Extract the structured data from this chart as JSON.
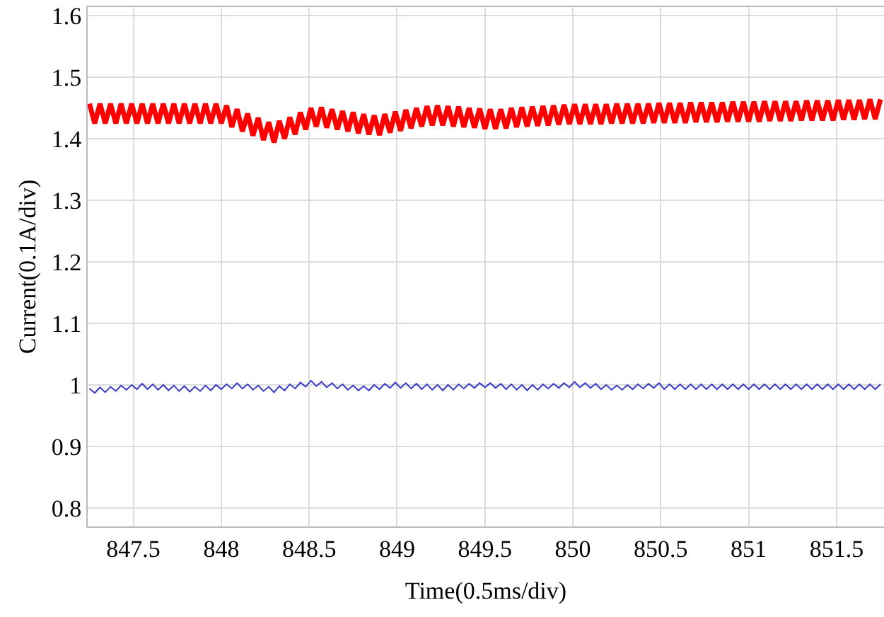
{
  "chart_data": {
    "type": "line",
    "xlabel": "Time(0.5ms/div)",
    "ylabel": "Current(0.1A/div)",
    "x": [
      847.25,
      847.28,
      847.31,
      847.34,
      847.37,
      847.4,
      847.43,
      847.46,
      847.49,
      847.52,
      847.55,
      847.58,
      847.61,
      847.64,
      847.67,
      847.7,
      847.73,
      847.76,
      847.79,
      847.82,
      847.85,
      847.88,
      847.91,
      847.94,
      847.97,
      848,
      848.03,
      848.06,
      848.09,
      848.12,
      848.15,
      848.18,
      848.21,
      848.24,
      848.27,
      848.3,
      848.33,
      848.36,
      848.39,
      848.42,
      848.45,
      848.48,
      848.51,
      848.54,
      848.57,
      848.6,
      848.63,
      848.66,
      848.69,
      848.72,
      848.75,
      848.78,
      848.81,
      848.84,
      848.87,
      848.9,
      848.93,
      848.96,
      848.99,
      849.02,
      849.05,
      849.08,
      849.11,
      849.14,
      849.17,
      849.2,
      849.23,
      849.26,
      849.29,
      849.32,
      849.35,
      849.38,
      849.41,
      849.44,
      849.47,
      849.5,
      849.53,
      849.56,
      849.59,
      849.62,
      849.65,
      849.68,
      849.71,
      849.74,
      849.77,
      849.8,
      849.83,
      849.86,
      849.89,
      849.92,
      849.95,
      849.98,
      850.01,
      850.04,
      850.07,
      850.1,
      850.13,
      850.16,
      850.19,
      850.22,
      850.25,
      850.28,
      850.31,
      850.34,
      850.37,
      850.4,
      850.43,
      850.46,
      850.49,
      850.52,
      850.55,
      850.58,
      850.61,
      850.64,
      850.67,
      850.7,
      850.73,
      850.76,
      850.79,
      850.82,
      850.85,
      850.88,
      850.91,
      850.94,
      850.97,
      851,
      851.03,
      851.06,
      851.09,
      851.12,
      851.15,
      851.18,
      851.21,
      851.24,
      851.27,
      851.3,
      851.33,
      851.36,
      851.39,
      851.42,
      851.45,
      851.48,
      851.51,
      851.54,
      851.57,
      851.6,
      851.63,
      851.66,
      851.69,
      851.72,
      851.75
    ],
    "series": [
      {
        "color": "#ff0000",
        "values": [
          1.457,
          1.425,
          1.457,
          1.425,
          1.457,
          1.425,
          1.457,
          1.425,
          1.457,
          1.425,
          1.457,
          1.425,
          1.457,
          1.425,
          1.457,
          1.425,
          1.457,
          1.425,
          1.457,
          1.425,
          1.457,
          1.425,
          1.457,
          1.425,
          1.457,
          1.425,
          1.454,
          1.419,
          1.448,
          1.412,
          1.441,
          1.405,
          1.434,
          1.398,
          1.427,
          1.394,
          1.429,
          1.4,
          1.435,
          1.407,
          1.443,
          1.415,
          1.45,
          1.42,
          1.451,
          1.418,
          1.448,
          1.415,
          1.445,
          1.412,
          1.443,
          1.409,
          1.44,
          1.407,
          1.438,
          1.406,
          1.44,
          1.41,
          1.444,
          1.413,
          1.447,
          1.417,
          1.45,
          1.42,
          1.453,
          1.422,
          1.454,
          1.422,
          1.453,
          1.42,
          1.452,
          1.419,
          1.45,
          1.418,
          1.449,
          1.416,
          1.448,
          1.416,
          1.448,
          1.417,
          1.45,
          1.419,
          1.451,
          1.42,
          1.452,
          1.421,
          1.453,
          1.422,
          1.454,
          1.423,
          1.455,
          1.424,
          1.456,
          1.424,
          1.456,
          1.424,
          1.456,
          1.424,
          1.456,
          1.425,
          1.457,
          1.425,
          1.457,
          1.425,
          1.457,
          1.425,
          1.457,
          1.426,
          1.458,
          1.426,
          1.458,
          1.426,
          1.458,
          1.426,
          1.459,
          1.427,
          1.459,
          1.427,
          1.459,
          1.427,
          1.459,
          1.428,
          1.46,
          1.428,
          1.46,
          1.428,
          1.46,
          1.428,
          1.461,
          1.429,
          1.461,
          1.429,
          1.461,
          1.429,
          1.461,
          1.43,
          1.462,
          1.43,
          1.462,
          1.43,
          1.462,
          1.43,
          1.463,
          1.431,
          1.463,
          1.431,
          1.463,
          1.432,
          1.464,
          1.432,
          1.464
        ]
      },
      {
        "color": "#3a3ac8",
        "values": [
          0.994,
          0.987,
          0.996,
          0.988,
          0.997,
          0.99,
          0.999,
          0.992,
          1.0,
          0.993,
          1.002,
          0.993,
          1.001,
          0.992,
          1.0,
          0.991,
          0.999,
          0.99,
          0.998,
          0.989,
          0.997,
          0.99,
          0.999,
          0.991,
          1.0,
          0.993,
          1.001,
          0.994,
          1.003,
          0.994,
          1.001,
          0.992,
          0.999,
          0.99,
          0.997,
          0.988,
          0.998,
          0.991,
          1.001,
          0.994,
          1.004,
          0.997,
          1.007,
          0.998,
          1.005,
          0.996,
          1.003,
          0.994,
          1.001,
          0.992,
          0.999,
          0.991,
          0.998,
          0.991,
          1.0,
          0.993,
          1.002,
          0.995,
          1.004,
          0.995,
          1.003,
          0.994,
          1.002,
          0.993,
          1.001,
          0.992,
          1.0,
          0.991,
          1.0,
          0.992,
          1.001,
          0.994,
          1.002,
          0.995,
          1.003,
          0.996,
          1.003,
          0.995,
          1.002,
          0.993,
          1.001,
          0.992,
          1.0,
          0.991,
          1.0,
          0.992,
          1.001,
          0.994,
          1.002,
          0.995,
          1.003,
          0.996,
          1.005,
          0.996,
          1.003,
          0.995,
          1.002,
          0.993,
          1.0,
          0.992,
          0.999,
          0.992,
          1.0,
          0.993,
          1.001,
          0.994,
          1.002,
          0.995,
          1.003,
          0.993,
          1.001,
          0.993,
          1.001,
          0.993,
          1.001,
          0.993,
          1.001,
          0.993,
          1.001,
          0.993,
          1.001,
          0.993,
          1.001,
          0.993,
          1.001,
          0.993,
          1.001,
          0.993,
          1.001,
          0.993,
          1.001,
          0.993,
          1.001,
          0.993,
          1.001,
          0.993,
          1.001,
          0.993,
          1.001,
          0.993,
          1.001,
          0.993,
          1.001,
          0.993,
          1.001,
          0.993,
          1.001,
          0.993,
          1.001,
          0.993,
          1.001
        ]
      }
    ],
    "xlim": [
      847.24,
      851.77
    ],
    "xticks": [
      847.5,
      848,
      848.5,
      849,
      849.5,
      850,
      850.5,
      851,
      851.5
    ],
    "ylim": [
      0.77,
      1.614
    ],
    "yticks": [
      0.8,
      0.9,
      1,
      1.1,
      1.2,
      1.3,
      1.4,
      1.5,
      1.6
    ],
    "grid": true,
    "marker": "none",
    "line_style": "solid"
  }
}
